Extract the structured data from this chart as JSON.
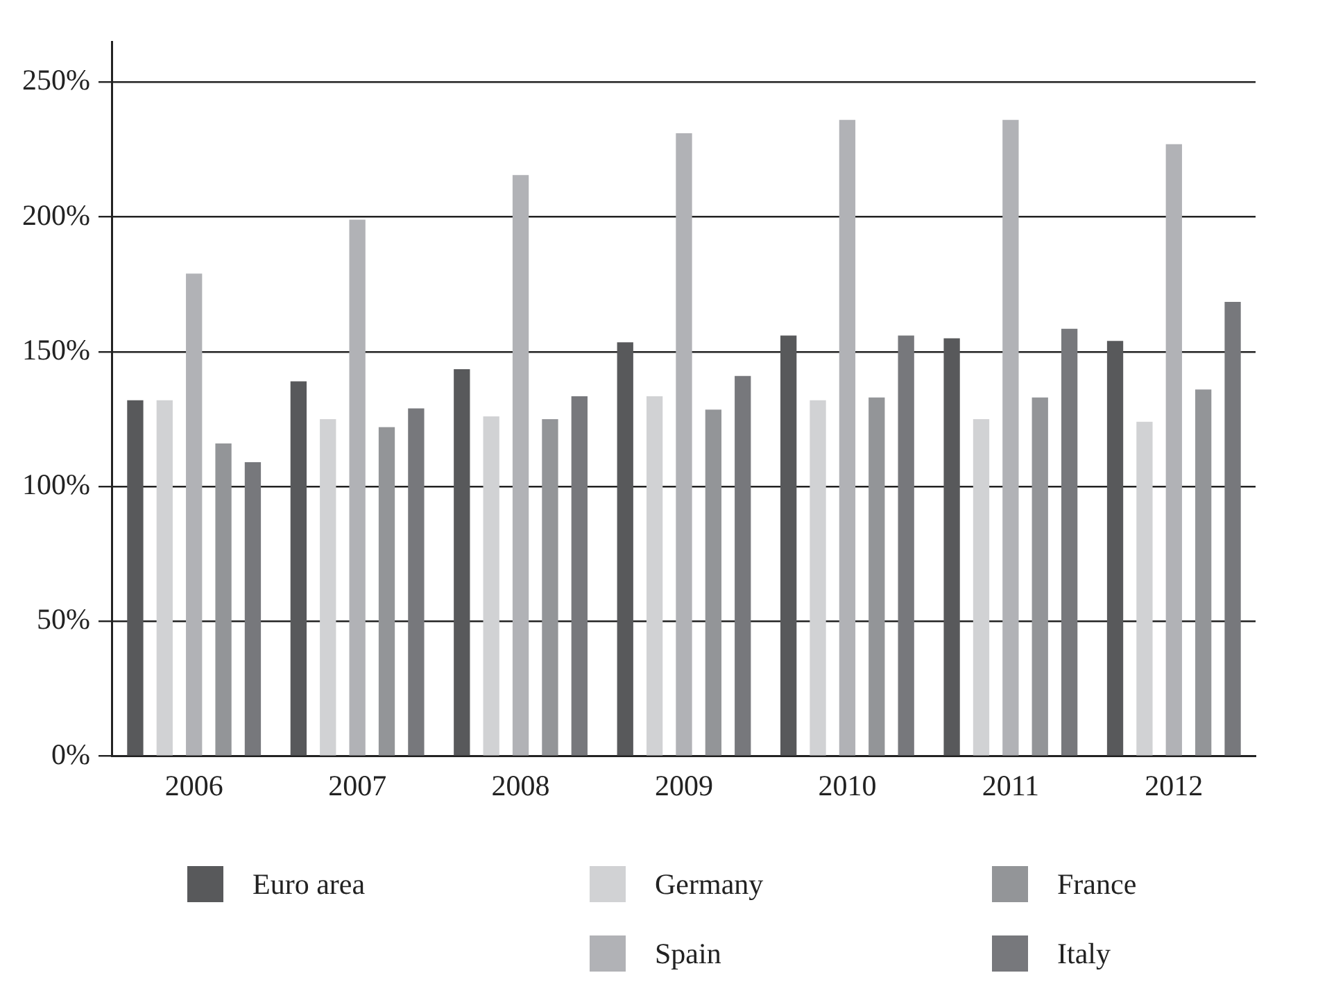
{
  "chart_data": {
    "type": "bar",
    "categories": [
      "2006",
      "2007",
      "2008",
      "2009",
      "2010",
      "2011",
      "2012"
    ],
    "series": [
      {
        "name": "Euro area",
        "color": "#58595b",
        "values": [
          132,
          139,
          143.5,
          153.5,
          156,
          155,
          154
        ]
      },
      {
        "name": "Germany",
        "color": "#d1d2d4",
        "values": [
          132,
          125,
          126,
          133.5,
          132,
          125,
          124
        ]
      },
      {
        "name": "Spain",
        "color": "#b1b2b6",
        "values": [
          179,
          199,
          215.5,
          231,
          236,
          236,
          227
        ]
      },
      {
        "name": "France",
        "color": "#939598",
        "values": [
          116,
          122,
          125,
          128.5,
          133,
          133,
          136
        ]
      },
      {
        "name": "Italy",
        "color": "#77787c",
        "values": [
          109,
          129,
          133.5,
          141,
          156,
          158.5,
          168.5
        ]
      }
    ],
    "ylim": [
      0,
      265
    ],
    "yticks": [
      {
        "value": 0,
        "label": "0%"
      },
      {
        "value": 50,
        "label": "50%"
      },
      {
        "value": 100,
        "label": "100%"
      },
      {
        "value": 150,
        "label": "150%"
      },
      {
        "value": 200,
        "label": "200%"
      },
      {
        "value": 250,
        "label": "250%"
      }
    ],
    "grid": "y",
    "legend": "bottom"
  }
}
